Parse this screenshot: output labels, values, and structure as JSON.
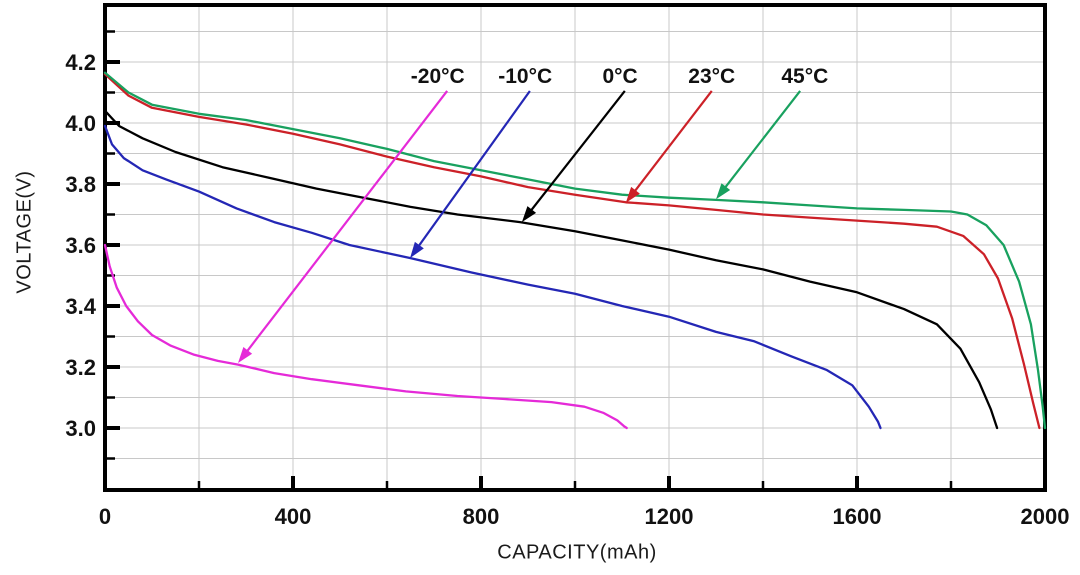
{
  "chart_data": {
    "type": "line",
    "title": "",
    "xlabel": "CAPACITY(mAh)",
    "ylabel": "VOLTAGE(V)",
    "xlim": [
      0,
      2000
    ],
    "ylim": [
      2.8,
      4.39
    ],
    "grid": "on",
    "legend_position": "inline-arrow-callouts",
    "axis_color": "#000000",
    "grid_color": "#c8c8c8",
    "x_major_tick_values": [
      0,
      400,
      800,
      1200,
      1600,
      2000
    ],
    "x_major_tick_labels": [
      "0",
      "400",
      "800",
      "1200",
      "1600",
      "2000"
    ],
    "x_minor_tick_values": [
      200,
      600,
      1000,
      1400,
      1800
    ],
    "y_major_tick_values": [
      3.0,
      3.2,
      3.4,
      3.6,
      3.8,
      4.0,
      4.2
    ],
    "y_major_tick_labels": [
      "3.0",
      "3.2",
      "3.4",
      "3.6",
      "3.8",
      "4.0",
      "4.2"
    ],
    "y_minor_tick_values": [
      2.9,
      3.1,
      3.3,
      3.5,
      3.7,
      3.9,
      4.1,
      4.3
    ],
    "grid_x_values": [
      200,
      400,
      600,
      800,
      1000,
      1200,
      1400,
      1600,
      1800
    ],
    "grid_y_values": [
      2.9,
      3.0,
      3.1,
      3.2,
      3.3,
      3.4,
      3.5,
      3.6,
      3.7,
      3.8,
      3.9,
      4.0,
      4.1,
      4.2,
      4.3
    ],
    "series": [
      {
        "name": "-20°C",
        "color": "#e52ad8",
        "points": [
          [
            0,
            3.6
          ],
          [
            10,
            3.53
          ],
          [
            25,
            3.46
          ],
          [
            45,
            3.4
          ],
          [
            70,
            3.35
          ],
          [
            100,
            3.305
          ],
          [
            140,
            3.27
          ],
          [
            190,
            3.24
          ],
          [
            240,
            3.22
          ],
          [
            283,
            3.208
          ],
          [
            360,
            3.18
          ],
          [
            440,
            3.16
          ],
          [
            540,
            3.14
          ],
          [
            640,
            3.12
          ],
          [
            750,
            3.105
          ],
          [
            850,
            3.095
          ],
          [
            950,
            3.085
          ],
          [
            1020,
            3.07
          ],
          [
            1060,
            3.05
          ],
          [
            1090,
            3.025
          ],
          [
            1105,
            3.005
          ],
          [
            1110,
            3.0
          ]
        ]
      },
      {
        "name": "-10°C",
        "color": "#2427b5",
        "points": [
          [
            0,
            3.99
          ],
          [
            15,
            3.93
          ],
          [
            40,
            3.885
          ],
          [
            80,
            3.845
          ],
          [
            130,
            3.815
          ],
          [
            200,
            3.775
          ],
          [
            280,
            3.72
          ],
          [
            360,
            3.675
          ],
          [
            440,
            3.64
          ],
          [
            520,
            3.6
          ],
          [
            650,
            3.557
          ],
          [
            780,
            3.51
          ],
          [
            900,
            3.47
          ],
          [
            1000,
            3.44
          ],
          [
            1100,
            3.4
          ],
          [
            1200,
            3.365
          ],
          [
            1300,
            3.315
          ],
          [
            1380,
            3.285
          ],
          [
            1460,
            3.235
          ],
          [
            1536,
            3.19
          ],
          [
            1590,
            3.14
          ],
          [
            1625,
            3.07
          ],
          [
            1645,
            3.02
          ],
          [
            1650,
            3.0
          ]
        ]
      },
      {
        "name": "0°C",
        "color": "#000000",
        "points": [
          [
            0,
            4.04
          ],
          [
            30,
            3.99
          ],
          [
            80,
            3.95
          ],
          [
            150,
            3.905
          ],
          [
            250,
            3.855
          ],
          [
            350,
            3.82
          ],
          [
            450,
            3.785
          ],
          [
            550,
            3.755
          ],
          [
            650,
            3.725
          ],
          [
            750,
            3.7
          ],
          [
            883,
            3.675
          ],
          [
            1000,
            3.645
          ],
          [
            1100,
            3.615
          ],
          [
            1200,
            3.585
          ],
          [
            1300,
            3.55
          ],
          [
            1400,
            3.52
          ],
          [
            1500,
            3.48
          ],
          [
            1600,
            3.445
          ],
          [
            1700,
            3.39
          ],
          [
            1770,
            3.34
          ],
          [
            1820,
            3.26
          ],
          [
            1860,
            3.15
          ],
          [
            1885,
            3.06
          ],
          [
            1898,
            3.0
          ]
        ]
      },
      {
        "name": "23°C",
        "color": "#cc2128",
        "points": [
          [
            0,
            4.16
          ],
          [
            50,
            4.09
          ],
          [
            100,
            4.05
          ],
          [
            200,
            4.02
          ],
          [
            300,
            3.995
          ],
          [
            400,
            3.965
          ],
          [
            500,
            3.93
          ],
          [
            600,
            3.89
          ],
          [
            700,
            3.855
          ],
          [
            800,
            3.825
          ],
          [
            900,
            3.79
          ],
          [
            1000,
            3.765
          ],
          [
            1108,
            3.74
          ],
          [
            1200,
            3.73
          ],
          [
            1300,
            3.715
          ],
          [
            1400,
            3.7
          ],
          [
            1500,
            3.69
          ],
          [
            1600,
            3.68
          ],
          [
            1700,
            3.67
          ],
          [
            1770,
            3.66
          ],
          [
            1826,
            3.63
          ],
          [
            1870,
            3.57
          ],
          [
            1900,
            3.49
          ],
          [
            1930,
            3.36
          ],
          [
            1955,
            3.21
          ],
          [
            1975,
            3.08
          ],
          [
            1988,
            3.0
          ]
        ]
      },
      {
        "name": "45°C",
        "color": "#19a15f",
        "points": [
          [
            0,
            4.165
          ],
          [
            50,
            4.1
          ],
          [
            100,
            4.06
          ],
          [
            200,
            4.03
          ],
          [
            300,
            4.01
          ],
          [
            400,
            3.98
          ],
          [
            500,
            3.95
          ],
          [
            600,
            3.915
          ],
          [
            700,
            3.875
          ],
          [
            800,
            3.845
          ],
          [
            900,
            3.815
          ],
          [
            1000,
            3.785
          ],
          [
            1100,
            3.765
          ],
          [
            1200,
            3.755
          ],
          [
            1300,
            3.748
          ],
          [
            1400,
            3.74
          ],
          [
            1500,
            3.73
          ],
          [
            1600,
            3.72
          ],
          [
            1700,
            3.715
          ],
          [
            1800,
            3.71
          ],
          [
            1835,
            3.7
          ],
          [
            1875,
            3.665
          ],
          [
            1912,
            3.6
          ],
          [
            1945,
            3.48
          ],
          [
            1970,
            3.34
          ],
          [
            1985,
            3.19
          ],
          [
            1995,
            3.07
          ],
          [
            2000,
            3.0
          ]
        ]
      }
    ],
    "annotations": [
      {
        "text": "-20°C",
        "color": "#e52ad8",
        "text_at": [
          708,
          4.157
        ],
        "arrow_from": [
          728,
          4.105
        ],
        "arrow_to": [
          283,
          3.213
        ]
      },
      {
        "text": "-10°C",
        "color": "#2427b5",
        "text_at": [
          894,
          4.157
        ],
        "arrow_from": [
          904,
          4.105
        ],
        "arrow_to": [
          649,
          3.557
        ]
      },
      {
        "text": "0°C",
        "color": "#000000",
        "text_at": [
          1096,
          4.157
        ],
        "arrow_from": [
          1106,
          4.105
        ],
        "arrow_to": [
          887,
          3.675
        ]
      },
      {
        "text": "23°C",
        "color": "#cc2128",
        "text_at": [
          1291,
          4.157
        ],
        "arrow_from": [
          1291,
          4.105
        ],
        "arrow_to": [
          1108,
          3.738
        ]
      },
      {
        "text": "45°C",
        "color": "#19a15f",
        "text_at": [
          1489,
          4.157
        ],
        "arrow_from": [
          1479,
          4.105
        ],
        "arrow_to": [
          1300,
          3.75
        ]
      }
    ]
  }
}
